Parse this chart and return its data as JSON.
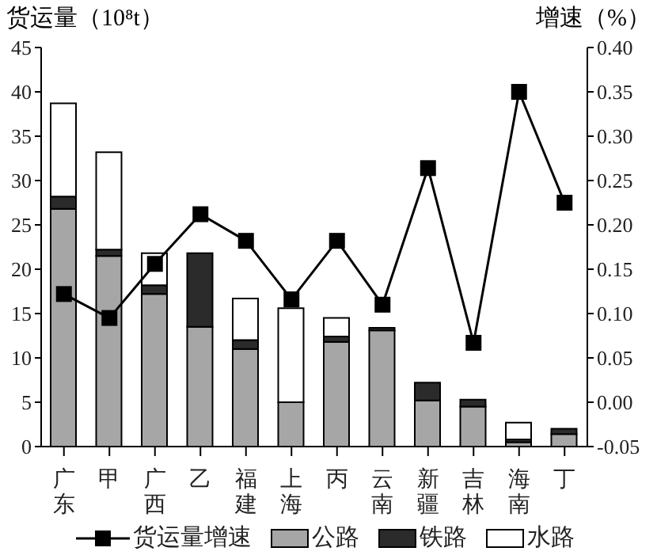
{
  "chart_data": {
    "type": "bar",
    "stacked": true,
    "ylabel": "货运量（10⁸t）",
    "y2label": "增速（%）",
    "categories": [
      "广东",
      "甲",
      "广西",
      "乙",
      "福建",
      "上海",
      "丙",
      "云南",
      "新疆",
      "吉林",
      "海南",
      "丁"
    ],
    "series": [
      {
        "name": "公路",
        "color": "#a6a6a6",
        "values": [
          26.8,
          21.5,
          17.2,
          13.5,
          11.0,
          5.0,
          11.8,
          13.1,
          5.2,
          4.5,
          0.5,
          1.4
        ]
      },
      {
        "name": "铁路",
        "color": "#2b2b2b",
        "values": [
          1.4,
          0.7,
          1.0,
          8.3,
          1.0,
          0,
          0.6,
          0.3,
          2.0,
          0.8,
          0.3,
          0.6
        ]
      },
      {
        "name": "水路",
        "color": "#ffffff",
        "values": [
          10.5,
          11.0,
          3.6,
          0,
          4.7,
          10.6,
          2.1,
          0,
          0,
          0,
          1.9,
          0
        ]
      },
      {
        "name": "货运量增速",
        "type": "line",
        "axis": "y2",
        "color": "#000000",
        "values": [
          0.122,
          0.095,
          0.156,
          0.212,
          0.182,
          0.116,
          0.182,
          0.11,
          0.264,
          0.067,
          0.35,
          0.225
        ]
      }
    ],
    "ylim": [
      0,
      45
    ],
    "yticks": [
      0,
      5,
      10,
      15,
      20,
      25,
      30,
      35,
      40,
      45
    ],
    "y2lim": [
      -0.05,
      0.4
    ],
    "y2ticks": [
      {
        "value": -0.05,
        "label": "-0.05"
      },
      {
        "value": 0,
        "label": "0.00"
      },
      {
        "value": 0.05,
        "label": "0.05"
      },
      {
        "value": 0.1,
        "label": "0.10"
      },
      {
        "value": 0.15,
        "label": "0.15"
      },
      {
        "value": 0.2,
        "label": "0.20"
      },
      {
        "value": 0.25,
        "label": "0.25"
      },
      {
        "value": 0.3,
        "label": "0.30"
      },
      {
        "value": 0.35,
        "label": "0.35"
      },
      {
        "value": 0.4,
        "label": "0.40"
      }
    ],
    "marker": "square",
    "legend": "bottom",
    "grid": false
  }
}
